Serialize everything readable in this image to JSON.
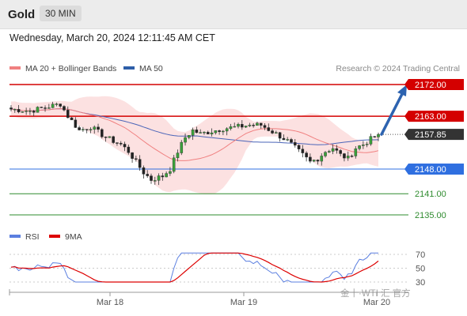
{
  "header": {
    "title": "Gold",
    "timeframe": "30 MIN"
  },
  "datetime": "Wednesday, March 20, 2024 12:11:45 AM CET",
  "chart_data": [
    {
      "type": "candlestick",
      "legend": [
        {
          "label": "MA 20 + Bollinger Bands",
          "color": "#f08080"
        },
        {
          "label": "MA 50",
          "color": "#2e5ea8"
        }
      ],
      "credit": "Research © 2024 Trading Central",
      "ylim": [
        2128,
        2178
      ],
      "levels": [
        {
          "label": "2172.00",
          "value": 2172.0,
          "kind": "resistance",
          "color": "#d40000"
        },
        {
          "label": "2163.00",
          "value": 2163.0,
          "kind": "resistance",
          "color": "#d40000"
        },
        {
          "label": "2157.85",
          "value": 2157.85,
          "kind": "current",
          "color": "#333333"
        },
        {
          "label": "2148.00",
          "value": 2148.0,
          "kind": "pivot",
          "color": "#2f6fe0"
        },
        {
          "label": "2141.00",
          "value": 2141.0,
          "kind": "support",
          "color": "#2e8b2e"
        },
        {
          "label": "2135.00",
          "value": 2135.0,
          "kind": "support",
          "color": "#2e8b2e"
        }
      ],
      "x_ticks": [
        "Mar 18",
        "Mar 19",
        "Mar 20"
      ],
      "forecast_arrow": {
        "from": 2157.85,
        "to": 2172.0
      }
    },
    {
      "type": "line",
      "legend": [
        {
          "label": "RSI",
          "color": "#5b7fe0"
        },
        {
          "label": "9MA",
          "color": "#dd0000"
        }
      ],
      "ylim": [
        25,
        78
      ],
      "levels": [
        {
          "label": "70",
          "value": 70
        },
        {
          "label": "50",
          "value": 50
        },
        {
          "label": "30",
          "value": 30
        }
      ]
    }
  ],
  "watermark": "金十·WTI 汇 官方"
}
